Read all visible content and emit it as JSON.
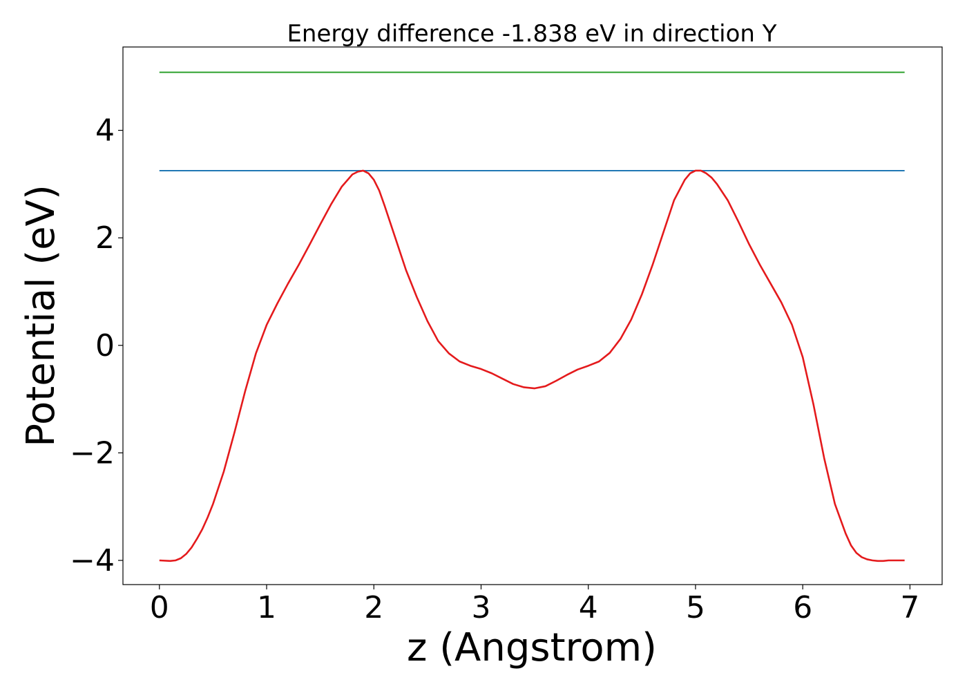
{
  "chart_data": {
    "type": "line",
    "title": "Energy difference -1.838 eV in direction Y",
    "xlabel": "z (Angstrom)",
    "ylabel": "Potential (eV)",
    "xlim": [
      -0.34,
      7.3
    ],
    "ylim": [
      -4.45,
      5.55
    ],
    "x_ticks": [
      0,
      1,
      2,
      3,
      4,
      5,
      6,
      7
    ],
    "x_tick_labels": [
      "0",
      "1",
      "2",
      "3",
      "4",
      "5",
      "6",
      "7"
    ],
    "y_ticks": [
      -4,
      -2,
      0,
      2,
      4
    ],
    "y_tick_labels": [
      "−4",
      "−2",
      "0",
      "2",
      "4"
    ],
    "grid": false,
    "legend": "none",
    "series": [
      {
        "kind": "line",
        "color": "#2ca02c",
        "x": [
          0,
          6.95
        ],
        "y": [
          5.08,
          5.08
        ]
      },
      {
        "kind": "line",
        "color": "#1f77b4",
        "x": [
          0,
          6.95
        ],
        "y": [
          3.25,
          3.25
        ]
      },
      {
        "kind": "line",
        "color": "#e41a1c",
        "x": [
          0.0,
          0.1,
          0.15,
          0.2,
          0.25,
          0.3,
          0.35,
          0.4,
          0.45,
          0.5,
          0.6,
          0.7,
          0.8,
          0.9,
          1.0,
          1.1,
          1.2,
          1.3,
          1.4,
          1.5,
          1.6,
          1.7,
          1.8,
          1.85,
          1.9,
          1.95,
          2.0,
          2.05,
          2.1,
          2.2,
          2.3,
          2.4,
          2.5,
          2.6,
          2.7,
          2.8,
          2.9,
          3.0,
          3.1,
          3.2,
          3.3,
          3.4,
          3.5,
          3.6,
          3.7,
          3.8,
          3.9,
          4.0,
          4.1,
          4.2,
          4.3,
          4.4,
          4.5,
          4.6,
          4.7,
          4.8,
          4.9,
          4.95,
          5.0,
          5.05,
          5.1,
          5.15,
          5.2,
          5.3,
          5.4,
          5.5,
          5.6,
          5.7,
          5.8,
          5.9,
          6.0,
          6.1,
          6.2,
          6.3,
          6.4,
          6.45,
          6.5,
          6.55,
          6.6,
          6.65,
          6.7,
          6.75,
          6.8,
          6.85,
          6.95
        ],
        "y": [
          -4.0,
          -4.01,
          -4.0,
          -3.96,
          -3.88,
          -3.76,
          -3.6,
          -3.42,
          -3.2,
          -2.95,
          -2.35,
          -1.62,
          -0.85,
          -0.15,
          0.38,
          0.78,
          1.15,
          1.5,
          1.87,
          2.25,
          2.62,
          2.95,
          3.18,
          3.23,
          3.25,
          3.2,
          3.08,
          2.88,
          2.6,
          2.0,
          1.4,
          0.9,
          0.45,
          0.08,
          -0.15,
          -0.3,
          -0.38,
          -0.44,
          -0.52,
          -0.62,
          -0.72,
          -0.78,
          -0.8,
          -0.76,
          -0.66,
          -0.55,
          -0.45,
          -0.38,
          -0.3,
          -0.14,
          0.12,
          0.48,
          0.95,
          1.5,
          2.1,
          2.7,
          3.08,
          3.2,
          3.25,
          3.25,
          3.2,
          3.12,
          3.0,
          2.7,
          2.3,
          1.88,
          1.5,
          1.15,
          0.8,
          0.38,
          -0.22,
          -1.1,
          -2.1,
          -2.95,
          -3.5,
          -3.72,
          -3.86,
          -3.94,
          -3.98,
          -4.0,
          -4.01,
          -4.01,
          -4.0,
          -4.0,
          -4.0
        ]
      }
    ]
  }
}
